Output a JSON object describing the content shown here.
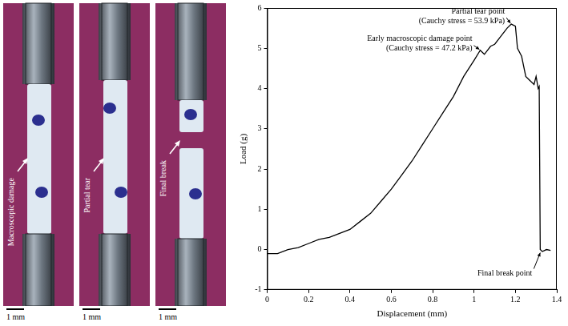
{
  "photos": [
    {
      "label": "Macroscopic damage",
      "scale_bar": "1 mm"
    },
    {
      "label": "Partial tear",
      "scale_bar": "1 mm"
    },
    {
      "label": "Final break",
      "scale_bar": "1 mm"
    }
  ],
  "chart_data": {
    "type": "line",
    "x_label": "Displacement (mm)",
    "y_label": "Load (g)",
    "x": [
      0,
      0.05,
      0.1,
      0.15,
      0.2,
      0.25,
      0.3,
      0.35,
      0.4,
      0.45,
      0.5,
      0.55,
      0.6,
      0.65,
      0.7,
      0.75,
      0.8,
      0.85,
      0.9,
      0.95,
      1.0,
      1.03,
      1.05,
      1.08,
      1.1,
      1.13,
      1.16,
      1.18,
      1.2,
      1.21,
      1.23,
      1.25,
      1.27,
      1.29,
      1.3,
      1.31,
      1.315,
      1.32,
      1.33,
      1.35,
      1.37
    ],
    "values": [
      -0.1,
      -0.1,
      0.0,
      0.05,
      0.15,
      0.25,
      0.3,
      0.4,
      0.5,
      0.7,
      0.9,
      1.2,
      1.5,
      1.85,
      2.2,
      2.6,
      3.0,
      3.4,
      3.8,
      4.3,
      4.7,
      4.95,
      4.85,
      5.05,
      5.1,
      5.3,
      5.5,
      5.6,
      5.55,
      5.0,
      4.8,
      4.3,
      4.2,
      4.1,
      4.3,
      4.0,
      4.05,
      0.0,
      -0.05,
      0.0,
      -0.02
    ],
    "color": "#000000",
    "xlim": [
      0,
      1.4
    ],
    "xticks": [
      0,
      0.2,
      0.4,
      0.6,
      0.8,
      1,
      1.2,
      1.4
    ],
    "ylim": [
      -1,
      6
    ],
    "yticks": [
      -1,
      0,
      1,
      2,
      3,
      4,
      5,
      6
    ],
    "grid": false,
    "annotations": [
      {
        "text": [
          "Early macroscopic damage point",
          "(Cauchy stress = 47.2 kPa)"
        ],
        "x": 1.03,
        "y": 4.95
      },
      {
        "text": [
          "Partial tear point",
          "(Cauchy stress = 53.9 kPa)"
        ],
        "x": 1.18,
        "y": 5.6
      },
      {
        "text": [
          "Final break point"
        ],
        "x": 1.32,
        "y": 0.0
      }
    ]
  }
}
